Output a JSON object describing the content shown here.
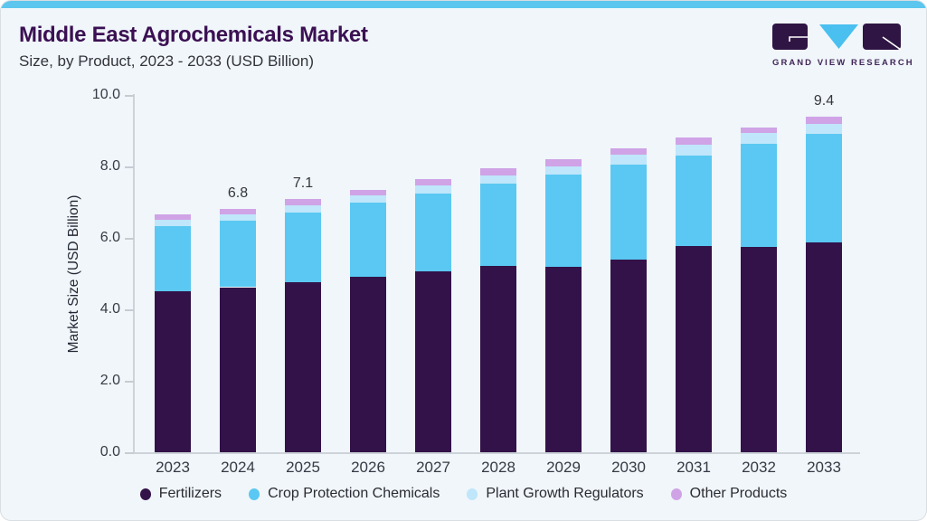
{
  "header": {
    "title": "Middle East Agrochemicals Market",
    "subtitle": "Size, by Product, 2023 - 2033 (USD Billion)"
  },
  "logo": {
    "brand": "GRAND VIEW RESEARCH",
    "purple": "#2f1544",
    "cyan": "#49c0ef"
  },
  "colors": {
    "card_background": "#f0f6fa",
    "top_accent_bar": "#5cc6ee",
    "title_text": "#3b1053",
    "axis_line": "#cdd3d9"
  },
  "chart_data": {
    "type": "bar",
    "stacked": true,
    "title": "Middle East Agrochemicals Market",
    "subtitle": "Size, by Product, 2023 - 2033 (USD Billion)",
    "xlabel": "",
    "ylabel": "Market Size (USD Billion)",
    "ylim": [
      0,
      10
    ],
    "ytick_labels": [
      "0.0",
      "2.0",
      "4.0",
      "6.0",
      "8.0",
      "10.0"
    ],
    "grid": false,
    "legend_position": "bottom",
    "categories": [
      "2023",
      "2024",
      "2025",
      "2026",
      "2027",
      "2028",
      "2029",
      "2030",
      "2031",
      "2032",
      "2033"
    ],
    "series": [
      {
        "name": "Fertilizers",
        "color": "#331249",
        "values": [
          4.5,
          4.62,
          4.75,
          4.9,
          5.07,
          5.21,
          5.19,
          5.38,
          5.76,
          5.74,
          5.88
        ]
      },
      {
        "name": "Crop Protection Chemicals",
        "color": "#5ac8f2",
        "values": [
          1.82,
          1.85,
          1.97,
          2.08,
          2.16,
          2.31,
          2.57,
          2.67,
          2.55,
          2.89,
          3.03
        ]
      },
      {
        "name": "Plant Growth Regulators",
        "color": "#bfe6fa",
        "values": [
          0.18,
          0.18,
          0.19,
          0.2,
          0.24,
          0.23,
          0.25,
          0.27,
          0.31,
          0.31,
          0.28
        ]
      },
      {
        "name": "Other Products",
        "color": "#cfa3e6",
        "values": [
          0.15,
          0.15,
          0.19,
          0.17,
          0.18,
          0.2,
          0.19,
          0.18,
          0.18,
          0.16,
          0.21
        ]
      }
    ],
    "totals": [
      6.65,
      6.8,
      7.1,
      7.35,
      7.65,
      7.95,
      8.2,
      8.5,
      8.8,
      9.1,
      9.4
    ],
    "value_labels": [
      {
        "category": "2024",
        "text": "6.8"
      },
      {
        "category": "2025",
        "text": "7.1"
      },
      {
        "category": "2033",
        "text": "9.4"
      }
    ]
  }
}
